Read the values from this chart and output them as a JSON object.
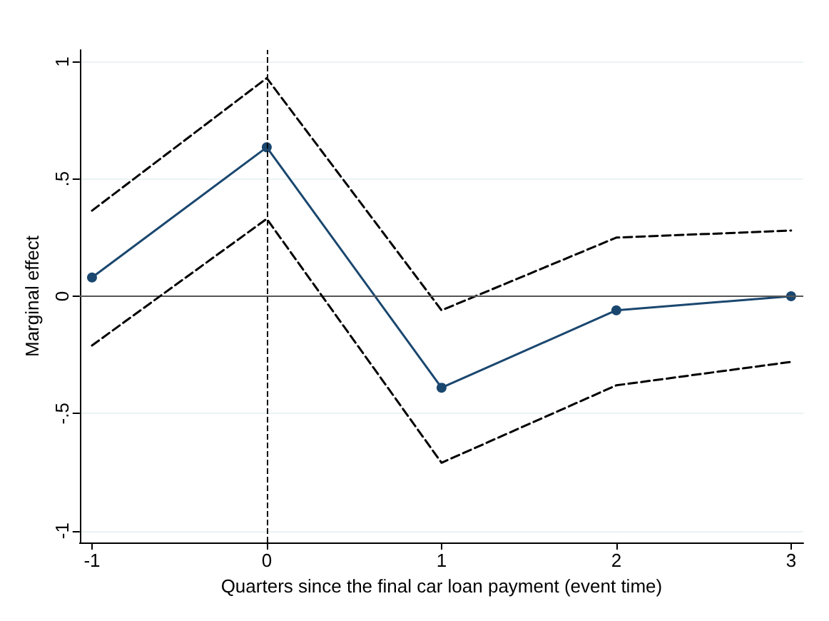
{
  "chart_data": {
    "type": "line",
    "xlabel": "Quarters since the final car loan payment (event time)",
    "ylabel": "Marginal effect",
    "x": [
      -1,
      0,
      1,
      2,
      3
    ],
    "series": [
      {
        "color": "#1a476f",
        "values": [
          0.08,
          0.635,
          -0.39,
          -0.06,
          0
        ],
        "marker": "circle",
        "line_style": "solid"
      },
      {
        "color": "#000000",
        "values": [
          0.365,
          0.93,
          -0.06,
          0.25,
          0.28
        ],
        "marker": "none",
        "line_style": "dashed"
      },
      {
        "color": "#000000",
        "values": [
          -0.21,
          0.33,
          -0.71,
          -0.38,
          -0.28
        ],
        "marker": "none",
        "line_style": "dashed"
      }
    ],
    "xlim": [
      -1.07,
      3.07
    ],
    "xticks": [
      -1,
      0,
      1,
      2,
      3
    ],
    "ylim": [
      -1.05,
      1.05
    ],
    "yticks": [
      {
        "value": -1,
        "label": "-1"
      },
      {
        "value": -0.5,
        "label": "-.5"
      },
      {
        "value": 0,
        "label": "0"
      },
      {
        "value": 0.5,
        "label": ".5"
      },
      {
        "value": 1,
        "label": "1"
      }
    ],
    "grid": "y",
    "ref_lines": [
      {
        "axis": "y",
        "value": 0,
        "color": "#555555",
        "line_style": "solid"
      },
      {
        "axis": "x",
        "value": 0,
        "color": "#000000",
        "line_style": "dashed"
      }
    ]
  }
}
